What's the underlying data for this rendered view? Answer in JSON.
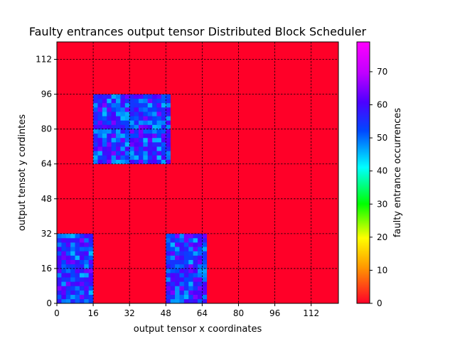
{
  "chart_data": {
    "type": "heatmap",
    "title": "Faulty entrances output tensor Distributed Block Scheduler",
    "xlabel": "output tensor x coordinates",
    "ylabel": "output tensot y cordintes",
    "xlim": [
      0,
      124
    ],
    "ylim": [
      0,
      120
    ],
    "xticks": [
      0,
      16,
      32,
      48,
      64,
      80,
      96,
      112
    ],
    "yticks": [
      0,
      16,
      32,
      48,
      64,
      80,
      96,
      112
    ],
    "grid": true,
    "background_value": 0,
    "cell_size": 2,
    "hot_blocks": [
      {
        "x": [
          0,
          16
        ],
        "y": [
          0,
          32
        ],
        "value_range": [
          45,
          65
        ]
      },
      {
        "x": [
          48,
          66
        ],
        "y": [
          0,
          32
        ],
        "value_range": [
          45,
          65
        ]
      },
      {
        "x": [
          16,
          50
        ],
        "y": [
          64,
          96
        ],
        "value_range": [
          45,
          65
        ]
      }
    ],
    "colorbar": {
      "label": "faulty entrance occurrences",
      "colormap": "gist_rainbow_r",
      "range": [
        0,
        79
      ],
      "ticks": [
        0,
        10,
        20,
        30,
        40,
        50,
        60,
        70
      ]
    },
    "colors": {
      "background_cell": "#ff0028",
      "grid": "#000000"
    }
  }
}
